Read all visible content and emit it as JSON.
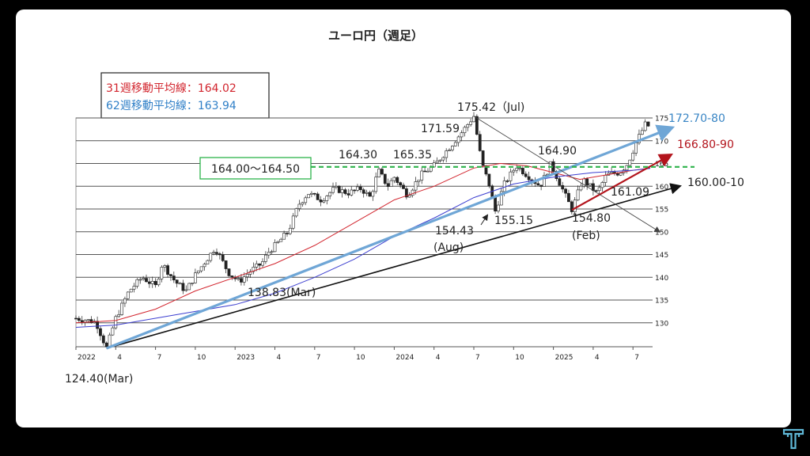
{
  "chart_data": {
    "type": "candlestick",
    "title": "ユーロ円（週足）",
    "y_range": [
      124,
      176
    ],
    "y_ticks": [
      130,
      135,
      140,
      145,
      150,
      155,
      160,
      165,
      170,
      175
    ],
    "x_ticks": [
      {
        "t": 0,
        "label": "2022"
      },
      {
        "t": 3,
        "label": "4"
      },
      {
        "t": 6,
        "label": "7"
      },
      {
        "t": 9,
        "label": "10"
      },
      {
        "t": 12,
        "label": "2023"
      },
      {
        "t": 15,
        "label": "4"
      },
      {
        "t": 18,
        "label": "7"
      },
      {
        "t": 21,
        "label": "10"
      },
      {
        "t": 24,
        "label": "2024"
      },
      {
        "t": 27,
        "label": "4"
      },
      {
        "t": 30,
        "label": "7"
      },
      {
        "t": 33,
        "label": "10"
      },
      {
        "t": 36,
        "label": "2025"
      },
      {
        "t": 39,
        "label": "4"
      },
      {
        "t": 42,
        "label": "7"
      }
    ],
    "x_range_months": [
      0,
      43.3
    ],
    "price_path": [
      [
        0,
        131
      ],
      [
        1.5,
        130.2
      ],
      [
        2.3,
        124.4
      ],
      [
        3,
        131
      ],
      [
        4,
        137
      ],
      [
        5,
        140
      ],
      [
        6,
        138
      ],
      [
        6.5,
        143
      ],
      [
        7.5,
        139
      ],
      [
        8.3,
        137
      ],
      [
        9,
        140.5
      ],
      [
        10.5,
        146.5
      ],
      [
        11.5,
        141
      ],
      [
        12.3,
        139
      ],
      [
        13.2,
        141.5
      ],
      [
        14,
        143
      ],
      [
        14.5,
        145.5
      ],
      [
        15.2,
        147.5
      ],
      [
        16,
        150
      ],
      [
        16.8,
        156
      ],
      [
        17.5,
        158.5
      ],
      [
        18.5,
        157
      ],
      [
        19.5,
        159.5
      ],
      [
        20.5,
        158.5
      ],
      [
        21.5,
        159.5
      ],
      [
        22.2,
        157.5
      ],
      [
        22.8,
        163.5
      ],
      [
        23.5,
        160
      ],
      [
        24,
        162
      ],
      [
        25,
        158
      ],
      [
        26,
        162.5
      ],
      [
        27,
        164.5
      ],
      [
        28,
        168
      ],
      [
        29,
        171.5
      ],
      [
        30,
        175.4
      ],
      [
        30.6,
        165
      ],
      [
        31.2,
        160
      ],
      [
        31.6,
        154.4
      ],
      [
        32.3,
        160.5
      ],
      [
        33.2,
        164.5
      ],
      [
        34,
        162.5
      ],
      [
        35,
        160
      ],
      [
        35.8,
        164.9
      ],
      [
        36.5,
        160.5
      ],
      [
        37.4,
        154.8
      ],
      [
        38.2,
        161.5
      ],
      [
        39.3,
        158.5
      ],
      [
        40,
        162.5
      ],
      [
        41,
        163
      ],
      [
        41.6,
        165
      ],
      [
        42.3,
        170
      ],
      [
        43,
        174
      ],
      [
        43.3,
        172.5
      ]
    ],
    "ma31_path": [
      [
        0,
        130
      ],
      [
        3,
        130.5
      ],
      [
        6,
        133
      ],
      [
        9,
        137
      ],
      [
        12,
        140
      ],
      [
        15,
        143
      ],
      [
        18,
        147
      ],
      [
        21,
        152
      ],
      [
        24,
        157
      ],
      [
        27,
        160
      ],
      [
        30,
        164
      ],
      [
        32,
        165
      ],
      [
        34,
        164.5
      ],
      [
        36,
        163
      ],
      [
        38,
        161.5
      ],
      [
        40,
        162.5
      ],
      [
        42,
        163.5
      ],
      [
        43.3,
        164
      ]
    ],
    "ma62_path": [
      [
        0,
        129
      ],
      [
        3,
        129.5
      ],
      [
        6,
        131
      ],
      [
        9,
        132.5
      ],
      [
        12,
        134
      ],
      [
        15,
        136.5
      ],
      [
        18,
        140
      ],
      [
        21,
        144
      ],
      [
        24,
        149
      ],
      [
        27,
        153
      ],
      [
        30,
        157.5
      ],
      [
        33,
        160.5
      ],
      [
        36,
        162
      ],
      [
        39,
        163
      ],
      [
        42,
        163.5
      ],
      [
        43.3,
        163.9
      ]
    ],
    "trend_lines": [
      {
        "name": "support-black",
        "from": [
          2.3,
          124.4
        ],
        "to": [
          45.5,
          160.0
        ],
        "color": "#111111"
      },
      {
        "name": "support-blue",
        "from": [
          2.3,
          124.4
        ],
        "to": [
          44.8,
          172.7
        ],
        "color": "#6fa6d6"
      },
      {
        "name": "support-red",
        "from": [
          37.4,
          154.8
        ],
        "to": [
          44.8,
          166.8
        ],
        "color": "#b3141c"
      },
      {
        "name": "resistance-thin",
        "from": [
          30,
          175.4
        ],
        "to": [
          44.0,
          150.0
        ],
        "color": "#444444"
      }
    ],
    "resistance_zone": {
      "label": "164.00〜164.50",
      "value": 164.25,
      "color": "#2db34a"
    },
    "legend": {
      "ma31_text": "31週移動平均線：164.02",
      "ma62_text": "62週移動平均線：163.94",
      "ma31_color": "#d2252e",
      "ma62_color": "#2f7fc7"
    },
    "annotations": [
      {
        "text": "175.42（Jul)",
        "color": "#222222"
      },
      {
        "text": "171.59",
        "color": "#222222"
      },
      {
        "text": "165.35",
        "color": "#222222"
      },
      {
        "text": "164.30",
        "color": "#222222"
      },
      {
        "text": "164.90",
        "color": "#222222"
      },
      {
        "text": "155.15",
        "color": "#222222"
      },
      {
        "text": "154.43",
        "color": "#222222"
      },
      {
        "text": "(Aug)",
        "color": "#222222"
      },
      {
        "text": "154.80",
        "color": "#222222"
      },
      {
        "text": "(Feb)",
        "color": "#222222"
      },
      {
        "text": "161.09",
        "color": "#222222"
      },
      {
        "text": "138.83(Mar)",
        "color": "#222222"
      },
      {
        "text": "124.40(Mar)",
        "color": "#222222"
      }
    ],
    "target_labels": [
      {
        "text": "172.70-80",
        "color": "#3a86c5"
      },
      {
        "text": "166.80-90",
        "color": "#b3141c"
      },
      {
        "text": "160.00-10",
        "color": "#222222"
      }
    ]
  },
  "logo_icon": "t-logo-icon"
}
